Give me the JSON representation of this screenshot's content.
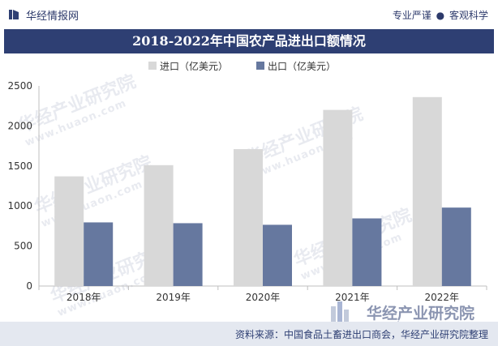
{
  "header": {
    "logo_text": "华经情报网",
    "slogan_left": "专业严谨",
    "slogan_sep": "●",
    "slogan_right": "客观科学"
  },
  "watermark": {
    "cn": "华经产业研究院",
    "url": "www.huaon.com"
  },
  "brand": {
    "name": "华经产业研究院",
    "url": "www.huaon.com"
  },
  "footer": {
    "source": "资料来源：中国食品土畜进出口商会，华经产业研究院整理"
  },
  "colors": {
    "title_bg": "#2e3f73",
    "import": "#d8d8d8",
    "export": "#66789f",
    "footer_bg": "#e4e8f0"
  },
  "chart_data": {
    "type": "bar",
    "title": "2018-2022年中国农产品进出口额情况",
    "categories": [
      "2018年",
      "2019年",
      "2020年",
      "2021年",
      "2022年"
    ],
    "series": [
      {
        "name": "进口（亿美元）",
        "values": [
          1370,
          1510,
          1710,
          2200,
          2360
        ]
      },
      {
        "name": "出口（亿美元）",
        "values": [
          795,
          785,
          765,
          845,
          980
        ]
      }
    ],
    "ylim": [
      0,
      2500
    ],
    "yticks": [
      0,
      500,
      1000,
      1500,
      2000,
      2500
    ],
    "xlabel": "",
    "ylabel": "",
    "legend": "top-center",
    "grid": false
  }
}
